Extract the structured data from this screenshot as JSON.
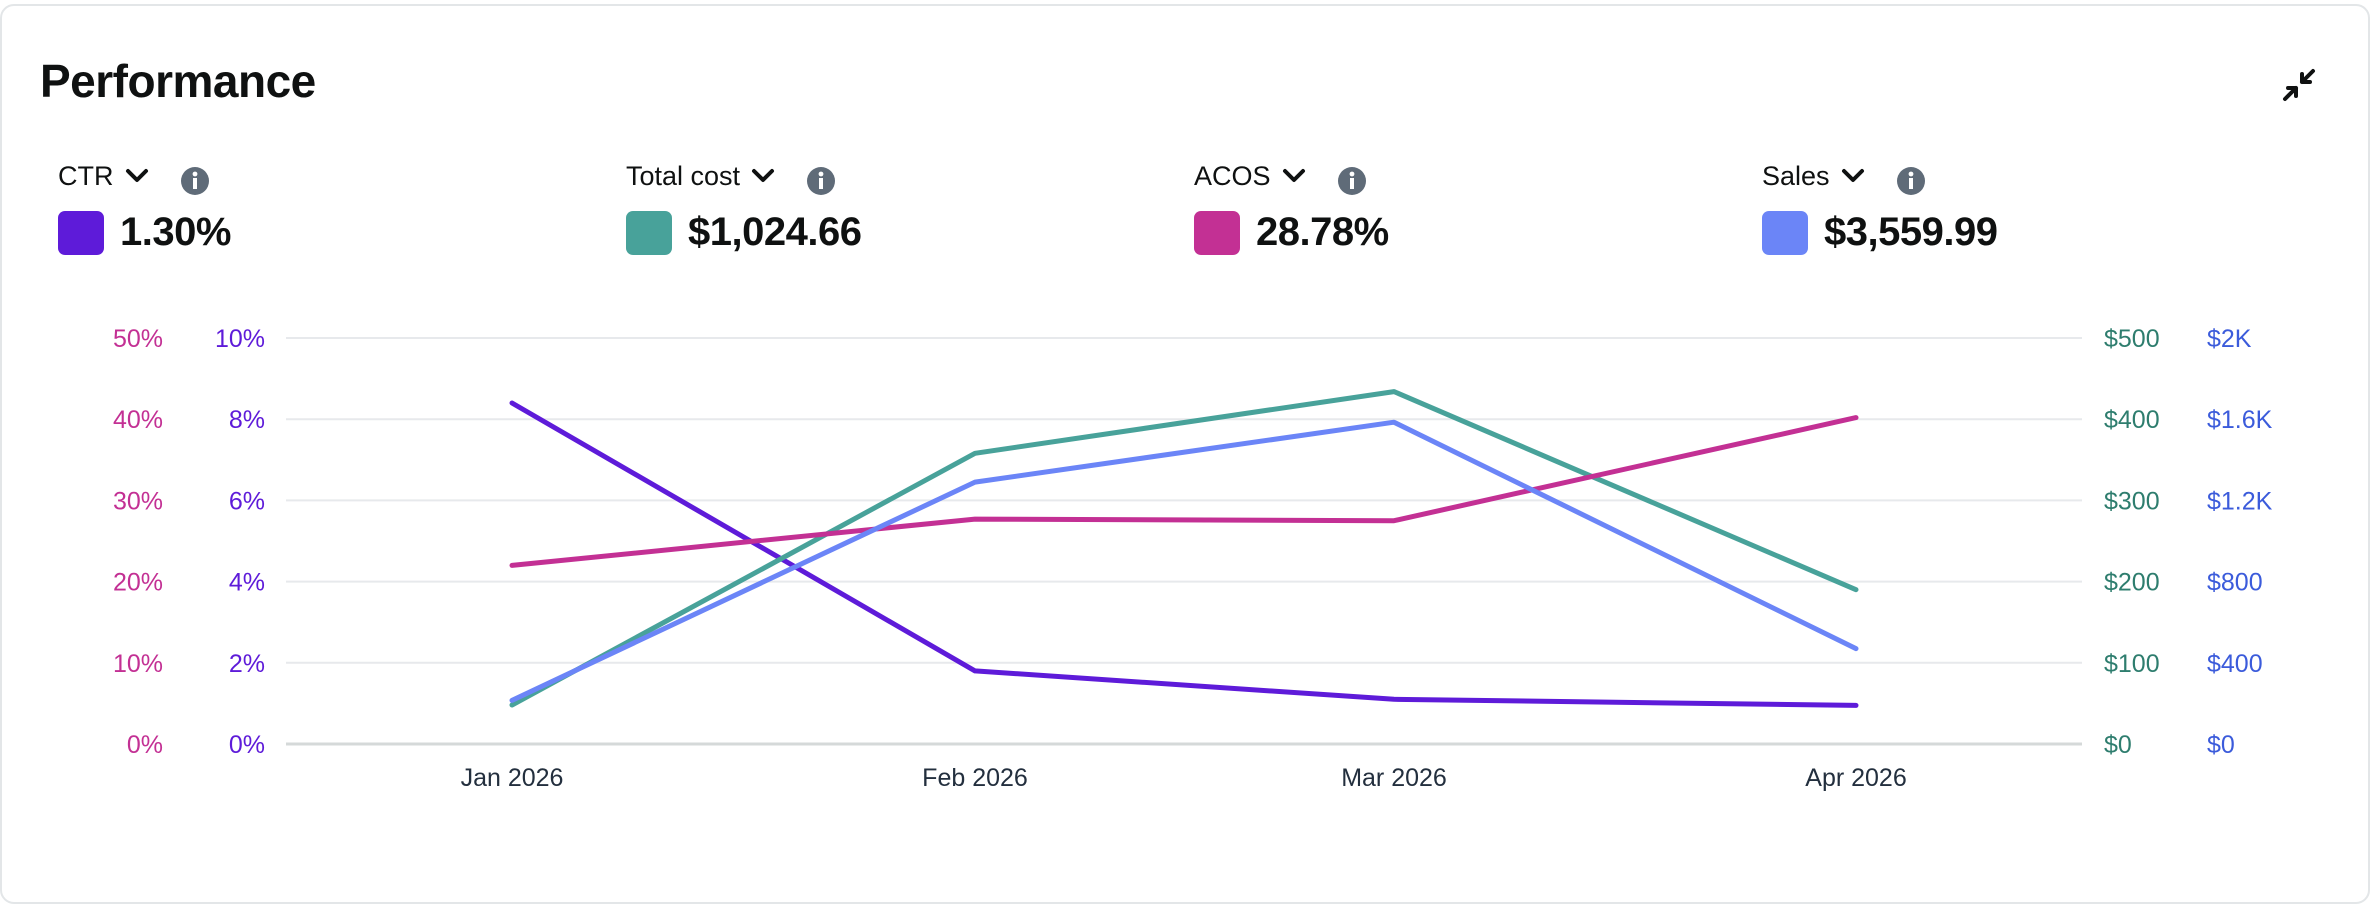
{
  "header": {
    "title": "Performance"
  },
  "metrics": [
    {
      "name": "CTR",
      "value": "1.30%",
      "color": "#5e1bd9"
    },
    {
      "name": "Total cost",
      "value": "$1,024.66",
      "color": "#48a29a"
    },
    {
      "name": "ACOS",
      "value": "28.78%",
      "color": "#c33094"
    },
    {
      "name": "Sales",
      "value": "$3,559.99",
      "color": "#6b85f7"
    }
  ],
  "icons": {
    "collapse": "collapse-arrows-icon",
    "dropdown": "chevron-down-icon",
    "info": "info-icon"
  },
  "chart_data": {
    "type": "line",
    "categories": [
      "Jan 2026",
      "Feb 2026",
      "Mar 2026",
      "Apr 2026"
    ],
    "grid": true,
    "axes": {
      "acos": {
        "side": "left-outer",
        "ticks": [
          "0%",
          "10%",
          "20%",
          "30%",
          "40%",
          "50%"
        ],
        "range": [
          0,
          50
        ],
        "color": "#c33094"
      },
      "ctr": {
        "side": "left-inner",
        "ticks": [
          "0%",
          "2%",
          "4%",
          "6%",
          "8%",
          "10%"
        ],
        "range": [
          0,
          10
        ],
        "color": "#5e1bd9"
      },
      "cost": {
        "side": "right-inner",
        "ticks": [
          "$0",
          "$100",
          "$200",
          "$300",
          "$400",
          "$500"
        ],
        "range": [
          0,
          500
        ],
        "color": "#2e7d6e"
      },
      "sales": {
        "side": "right-outer",
        "ticks": [
          "$0",
          "$400",
          "$800",
          "$1.2K",
          "$1.6K",
          "$2K"
        ],
        "range": [
          0,
          2000
        ],
        "color": "#3b5bdb"
      }
    },
    "series": [
      {
        "name": "CTR",
        "axis": "ctr",
        "color": "#5e1bd9",
        "values": [
          8.4,
          1.8,
          1.1,
          0.95
        ]
      },
      {
        "name": "Total cost",
        "axis": "cost",
        "color": "#48a29a",
        "values": [
          48,
          358,
          434,
          190
        ]
      },
      {
        "name": "ACOS",
        "axis": "acos",
        "color": "#c33094",
        "values": [
          22.0,
          27.7,
          27.5,
          40.2
        ]
      },
      {
        "name": "Sales",
        "axis": "sales",
        "color": "#6b85f7",
        "values": [
          215,
          1290,
          1585,
          470
        ]
      }
    ]
  }
}
